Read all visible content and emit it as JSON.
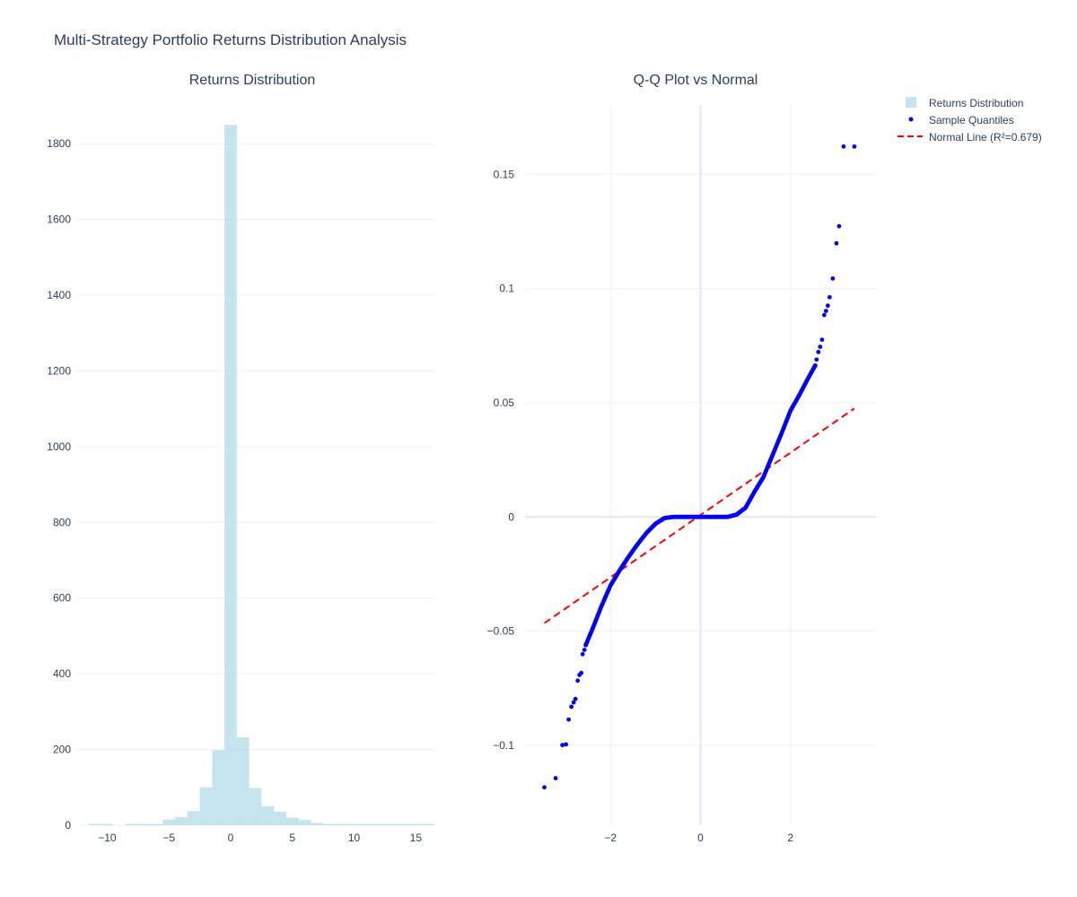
{
  "title": "Multi-Strategy Portfolio Returns Distribution Analysis",
  "legend": {
    "items": [
      {
        "label": "Returns Distribution",
        "type": "bar",
        "color": "#add8e6"
      },
      {
        "label": "Sample Quantiles",
        "type": "marker",
        "color": "#0000ff"
      },
      {
        "label": "Normal Line (R²=0.679)",
        "type": "dash",
        "color": "#ff0000"
      }
    ]
  },
  "colors": {
    "grid": "#eef0f6",
    "zeroline": "#e3e6f3",
    "text": "#2a3f5f",
    "bar": "#add8e6",
    "bar_opacity": 0.7,
    "marker": "#0000ff",
    "line": "#ff0000"
  },
  "chart_data": [
    {
      "type": "bar",
      "title": "Returns Distribution",
      "series_name": "Returns Distribution",
      "xlim": [
        -12.5,
        16.5
      ],
      "ylim": [
        0,
        1900
      ],
      "xticks": [
        -10,
        -5,
        0,
        5,
        10,
        15
      ],
      "yticks": [
        0,
        200,
        400,
        600,
        800,
        1000,
        1200,
        1400,
        1600,
        1800
      ],
      "bins": [
        {
          "x0": -11,
          "x1": -10,
          "count": 1
        },
        {
          "x0": -10,
          "x1": -9,
          "count": 1
        },
        {
          "x0": -9,
          "x1": -8,
          "count": 0
        },
        {
          "x0": -8,
          "x1": -7,
          "count": 2
        },
        {
          "x0": -7,
          "x1": -6,
          "count": 3
        },
        {
          "x0": -6,
          "x1": -5,
          "count": 3
        },
        {
          "x0": -5,
          "x1": -4,
          "count": 15
        },
        {
          "x0": -4,
          "x1": -3,
          "count": 22
        },
        {
          "x0": -3,
          "x1": -2,
          "count": 37
        },
        {
          "x0": -2,
          "x1": -1,
          "count": 100
        },
        {
          "x0": -1,
          "x1": 0,
          "count": 198
        },
        {
          "x0": 0,
          "x1": 1,
          "count": 1850
        },
        {
          "x0": 1,
          "x1": 2,
          "count": 232
        },
        {
          "x0": 2,
          "x1": 3,
          "count": 98
        },
        {
          "x0": 3,
          "x1": 4,
          "count": 50
        },
        {
          "x0": 4,
          "x1": 5,
          "count": 36
        },
        {
          "x0": 5,
          "x1": 6,
          "count": 20
        },
        {
          "x0": 6,
          "x1": 7,
          "count": 14
        },
        {
          "x0": 7,
          "x1": 8,
          "count": 6
        },
        {
          "x0": 8,
          "x1": 9,
          "count": 3
        },
        {
          "x0": 9,
          "x1": 10,
          "count": 2
        },
        {
          "x0": 10,
          "x1": 11,
          "count": 2
        },
        {
          "x0": 11,
          "x1": 12,
          "count": 1
        },
        {
          "x0": 12,
          "x1": 13,
          "count": 1
        },
        {
          "x0": 13,
          "x1": 14,
          "count": 1
        },
        {
          "x0": 14,
          "x1": 15,
          "count": 1
        },
        {
          "x0": 15,
          "x1": 16,
          "count": 1
        },
        {
          "x0": 16,
          "x1": 17,
          "count": 1
        }
      ]
    },
    {
      "type": "scatter",
      "title": "Q-Q Plot vs Normal",
      "xlim": [
        -3.9,
        3.9
      ],
      "ylim": [
        -0.135,
        0.18
      ],
      "xticks": [
        -2,
        0,
        2
      ],
      "yticks": [
        -0.1,
        -0.05,
        0,
        0.05,
        0.1,
        0.15
      ],
      "ytick_labels": [
        "−0.1",
        "−0.05",
        "0",
        "0.05",
        "0.1",
        "0.15"
      ],
      "xtick_labels": [
        "−2",
        "0",
        "2"
      ],
      "series": [
        {
          "name": "Sample Quantiles",
          "type": "points",
          "tail_points": [
            [
              -3.47,
              -0.1184
            ],
            [
              -3.22,
              -0.1144
            ],
            [
              -3.07,
              -0.0999
            ],
            [
              -2.99,
              -0.0996
            ],
            [
              -2.93,
              -0.0887
            ],
            [
              -2.87,
              -0.0831
            ],
            [
              -2.82,
              -0.0812
            ],
            [
              -2.78,
              -0.0797
            ],
            [
              -2.73,
              -0.0717
            ],
            [
              -2.69,
              -0.0692
            ],
            [
              -2.65,
              -0.0683
            ],
            [
              -2.62,
              -0.0601
            ],
            [
              -2.58,
              -0.0582
            ],
            [
              -2.55,
              -0.0561
            ],
            [
              3.18,
              0.1622
            ],
            [
              3.42,
              0.1622
            ],
            [
              3.08,
              0.1273
            ],
            [
              3.02,
              0.1198
            ],
            [
              2.94,
              0.1044
            ],
            [
              2.87,
              0.0962
            ],
            [
              2.83,
              0.0925
            ],
            [
              2.79,
              0.0902
            ],
            [
              2.75,
              0.0884
            ],
            [
              2.7,
              0.0776
            ],
            [
              2.66,
              0.0745
            ],
            [
              2.62,
              0.0722
            ],
            [
              2.58,
              0.0689
            ],
            [
              2.55,
              0.0663
            ]
          ],
          "body_curve": [
            [
              -2.55,
              -0.0561
            ],
            [
              -2.4,
              -0.049
            ],
            [
              -2.2,
              -0.039
            ],
            [
              -2.0,
              -0.03
            ],
            [
              -1.8,
              -0.0235
            ],
            [
              -1.6,
              -0.0175
            ],
            [
              -1.4,
              -0.012
            ],
            [
              -1.2,
              -0.007
            ],
            [
              -1.0,
              -0.003
            ],
            [
              -0.8,
              -0.0005
            ],
            [
              -0.6,
              0.0
            ],
            [
              -0.3,
              0.0
            ],
            [
              0.0,
              0.0
            ],
            [
              0.3,
              0.0
            ],
            [
              0.6,
              0.0
            ],
            [
              0.8,
              0.001
            ],
            [
              1.0,
              0.004
            ],
            [
              1.2,
              0.011
            ],
            [
              1.4,
              0.0175
            ],
            [
              1.6,
              0.027
            ],
            [
              1.8,
              0.0365
            ],
            [
              2.0,
              0.0465
            ],
            [
              2.2,
              0.0535
            ],
            [
              2.4,
              0.061
            ],
            [
              2.55,
              0.0663
            ]
          ],
          "body_count": 420
        },
        {
          "name": "Normal Line (R²=0.679)",
          "type": "line",
          "points": [
            [
              -3.47,
              -0.0465
            ],
            [
              3.42,
              0.0475
            ]
          ]
        }
      ]
    }
  ]
}
